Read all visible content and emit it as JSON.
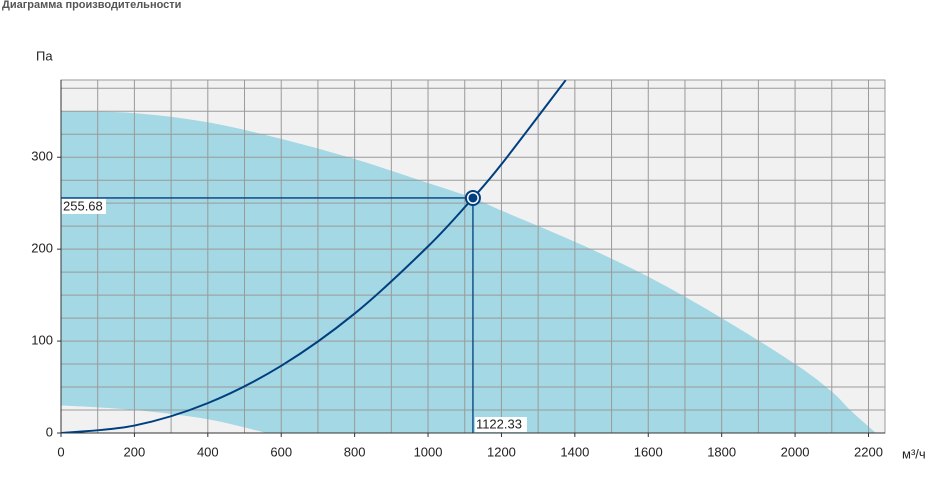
{
  "chart_data": {
    "type": "line",
    "title": "Диаграмма производительности",
    "ylabel": "Па",
    "xlabel": "м³/ч",
    "xlim": [
      0,
      2245
    ],
    "ylim": [
      0,
      384
    ],
    "xticks": [
      0,
      200,
      400,
      600,
      800,
      1000,
      1200,
      1400,
      1600,
      1800,
      2000,
      2200
    ],
    "yticks": [
      0,
      100,
      200,
      300
    ],
    "xgrid": [
      100,
      200,
      300,
      400,
      500,
      600,
      700,
      800,
      900,
      1000,
      1100,
      1200,
      1300,
      1400,
      1500,
      1600,
      1700,
      1800,
      1900,
      2000,
      2100,
      2200
    ],
    "ygrid": [
      25,
      50,
      75,
      100,
      125,
      150,
      175,
      200,
      225,
      250,
      275,
      300,
      325,
      350,
      375
    ],
    "area": {
      "color": "#a3d8e4",
      "upper": {
        "x": [
          0,
          200,
          400,
          600,
          800,
          1000,
          1122.33,
          1200,
          1400,
          1600,
          1800,
          2000,
          2100,
          2150,
          2220
        ],
        "y": [
          350,
          348,
          338,
          320,
          298,
          272,
          255.68,
          242,
          208,
          170,
          125,
          75,
          45,
          25,
          0
        ]
      },
      "lower": {
        "x": [
          0,
          200,
          400,
          560
        ],
        "y": [
          30,
          25,
          15,
          0
        ]
      }
    },
    "series": [
      {
        "color": "#003f7f",
        "x": [
          0,
          200,
          400,
          600,
          800,
          1000,
          1122.33,
          1200,
          1375
        ],
        "y": [
          0,
          8.1,
          32.5,
          73.1,
          129.9,
          203,
          255.68,
          292.3,
          383.8
        ]
      }
    ],
    "point": {
      "x": 1122.33,
      "y": 255.68,
      "color": "#003f7f"
    }
  }
}
